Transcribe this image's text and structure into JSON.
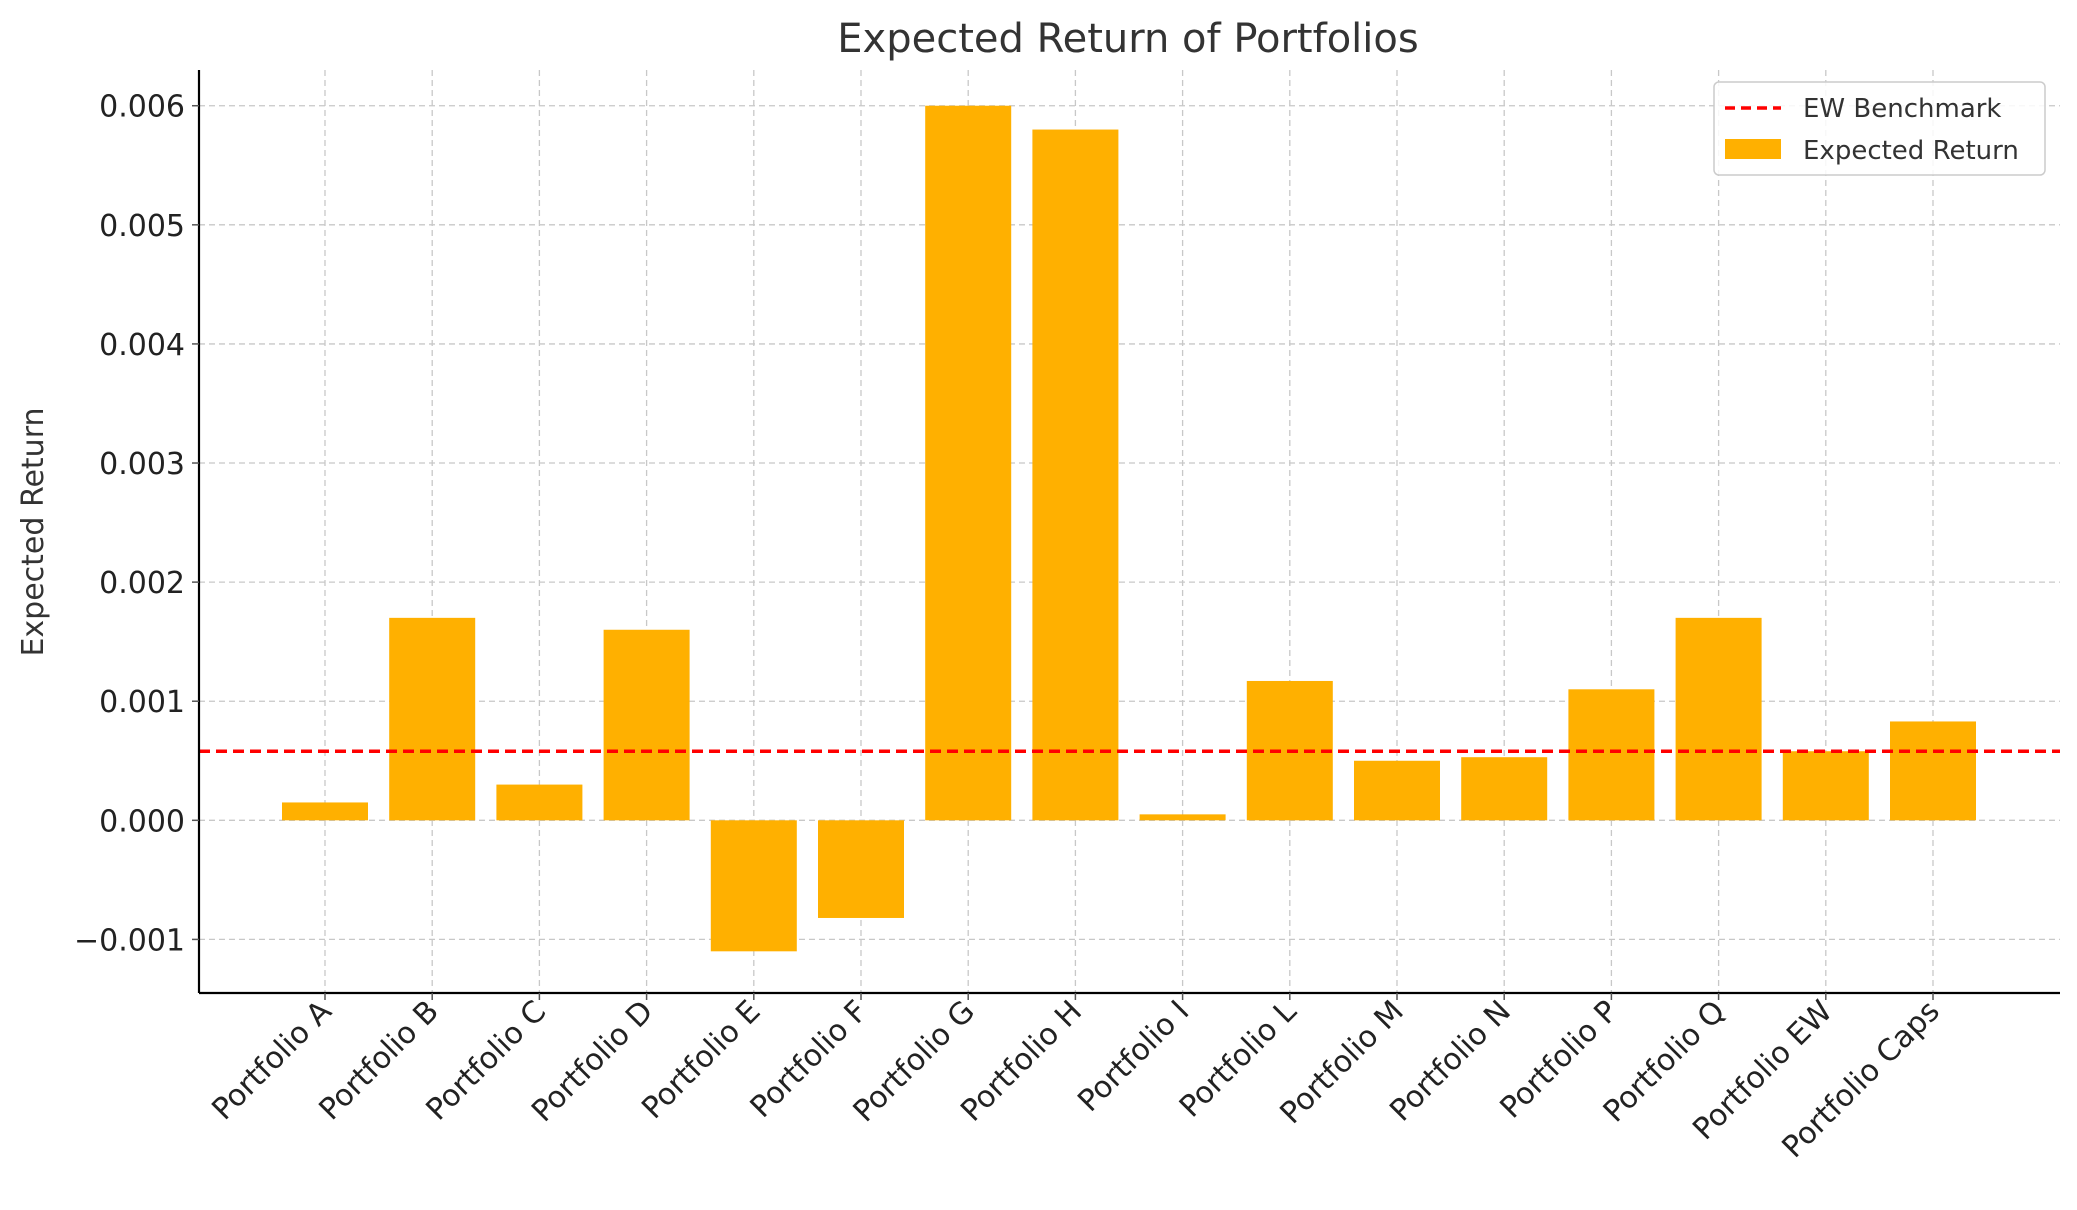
{
  "chart_data": {
    "type": "bar",
    "title": "Expected Return of Portfolios",
    "xlabel": "",
    "ylabel": "Expected Return",
    "categories": [
      "Portfolio A",
      "Portfolio B",
      "Portfolio C",
      "Portfolio D",
      "Portfolio E",
      "Portfolio F",
      "Portfolio G",
      "Portfolio H",
      "Portfolio I",
      "Portfolio L",
      "Portfolio M",
      "Portfolio N",
      "Portfolio P",
      "Portfolio Q",
      "Portfolio EW",
      "Portfolio Caps"
    ],
    "series": [
      {
        "name": "Expected Return",
        "values": [
          0.00015,
          0.0017,
          0.0003,
          0.0016,
          -0.0011,
          -0.00082,
          0.006,
          0.0058,
          5e-05,
          0.00117,
          0.0005,
          0.00053,
          0.0011,
          0.0017,
          0.00058,
          0.00083
        ],
        "color": "#FFB000"
      }
    ],
    "benchmark": {
      "name": "EW Benchmark",
      "value": 0.00058,
      "color": "#FF0000"
    },
    "ylim": [
      -0.00145,
      0.0063
    ],
    "yticks": [
      "−0.001",
      "0.000",
      "0.001",
      "0.002",
      "0.003",
      "0.004",
      "0.005",
      "0.006"
    ],
    "ytick_values": [
      -0.001,
      0,
      0.001,
      0.002,
      0.003,
      0.004,
      0.005,
      0.006
    ],
    "grid": true,
    "legend_position": "top-right"
  }
}
